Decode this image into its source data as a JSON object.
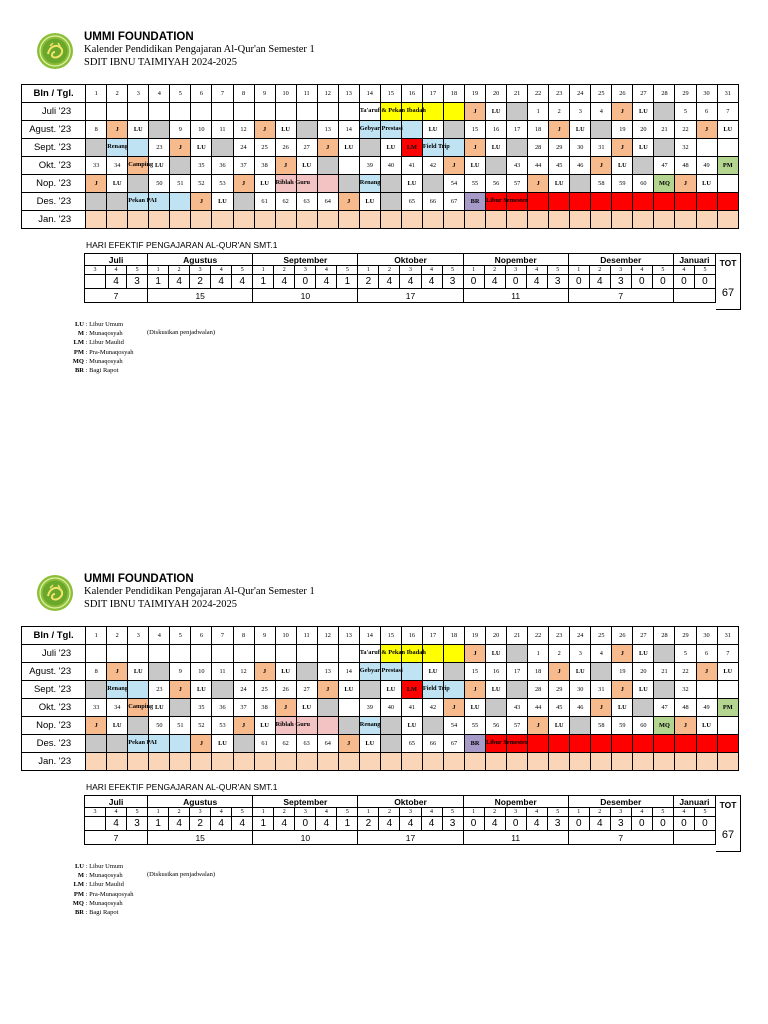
{
  "header": {
    "org": "UMMI FOUNDATION",
    "subtitle": "Kalender Pendidikan Pengajaran Al-Qur'an Semester 1",
    "school": "SDIT IBNU TAIMIYAH 2024-2025"
  },
  "calendar": {
    "header_label": "Bln / Tgl.",
    "days": [
      "1",
      "2",
      "3",
      "4",
      "5",
      "6",
      "7",
      "8",
      "9",
      "10",
      "11",
      "12",
      "13",
      "14",
      "15",
      "16",
      "17",
      "18",
      "19",
      "20",
      "21",
      "22",
      "23",
      "24",
      "25",
      "26",
      "27",
      "28",
      "29",
      "30",
      "31"
    ],
    "rows": [
      {
        "label": "Juli '23",
        "cells": [
          [
            "",
            ""
          ],
          [
            "",
            ""
          ],
          [
            "",
            ""
          ],
          [
            "",
            ""
          ],
          [
            "",
            ""
          ],
          [
            "",
            ""
          ],
          [
            "",
            ""
          ],
          [
            "",
            ""
          ],
          [
            "",
            ""
          ],
          [
            "",
            ""
          ],
          [
            "",
            ""
          ],
          [
            "",
            ""
          ],
          [
            "",
            ""
          ],
          [
            "",
            "",
            "Ta'aruf & Pekan Ibadah",
            "y"
          ],
          [
            "",
            "y"
          ],
          [
            "",
            "y"
          ],
          [
            "",
            "y"
          ],
          [
            "",
            "y"
          ],
          [
            "J",
            "o"
          ],
          [
            "LU",
            ""
          ],
          [
            "",
            "g"
          ],
          [
            "1",
            ""
          ],
          [
            "2",
            ""
          ],
          [
            "3",
            ""
          ],
          [
            "4",
            ""
          ],
          [
            "J",
            "o"
          ],
          [
            "LU",
            ""
          ],
          [
            "",
            "g"
          ],
          [
            "5",
            ""
          ],
          [
            "6",
            ""
          ],
          [
            "7",
            ""
          ]
        ]
      },
      {
        "label": "Agust. '23",
        "cells": [
          [
            "8",
            ""
          ],
          [
            "J",
            "o"
          ],
          [
            "LU",
            ""
          ],
          [
            "",
            "g"
          ],
          [
            "9",
            ""
          ],
          [
            "10",
            ""
          ],
          [
            "11",
            ""
          ],
          [
            "12",
            ""
          ],
          [
            "J",
            "o"
          ],
          [
            "LU",
            ""
          ],
          [
            "",
            "g"
          ],
          [
            "13",
            ""
          ],
          [
            "14",
            ""
          ],
          [
            "",
            "lb",
            "Gebyar Prestasi"
          ],
          [
            "",
            "lb"
          ],
          [
            "",
            "lb"
          ],
          [
            "LU",
            ""
          ],
          [
            "",
            "g"
          ],
          [
            "15",
            ""
          ],
          [
            "16",
            ""
          ],
          [
            "17",
            ""
          ],
          [
            "18",
            ""
          ],
          [
            "J",
            "o"
          ],
          [
            "LU",
            ""
          ],
          [
            "",
            "g"
          ],
          [
            "19",
            ""
          ],
          [
            "20",
            ""
          ],
          [
            "21",
            ""
          ],
          [
            "22",
            ""
          ],
          [
            "J",
            "o"
          ],
          [
            "LU",
            ""
          ]
        ]
      },
      {
        "label": "Sept. '23",
        "cells": [
          [
            "",
            "g"
          ],
          [
            "",
            "lb",
            "Renang"
          ],
          [
            "",
            "lb"
          ],
          [
            "23",
            ""
          ],
          [
            "J",
            "o"
          ],
          [
            "LU",
            ""
          ],
          [
            "",
            "g"
          ],
          [
            "24",
            ""
          ],
          [
            "25",
            ""
          ],
          [
            "26",
            ""
          ],
          [
            "27",
            ""
          ],
          [
            "J",
            "o"
          ],
          [
            "LU",
            ""
          ],
          [
            "",
            "g"
          ],
          [
            "LU",
            ""
          ],
          [
            "LM",
            "r"
          ],
          [
            "",
            "lb",
            "Field Trip"
          ],
          [
            "",
            "lb"
          ],
          [
            "J",
            "o"
          ],
          [
            "LU",
            ""
          ],
          [
            "",
            "g"
          ],
          [
            "28",
            ""
          ],
          [
            "29",
            ""
          ],
          [
            "30",
            ""
          ],
          [
            "31",
            ""
          ],
          [
            "J",
            "o"
          ],
          [
            "LU",
            ""
          ],
          [
            "",
            "g"
          ],
          [
            "32",
            ""
          ],
          [
            "",
            ""
          ],
          [
            "",
            ""
          ]
        ]
      },
      {
        "label": "Okt. '23",
        "cells": [
          [
            "33",
            ""
          ],
          [
            "34",
            ""
          ],
          [
            "",
            "o",
            "Camping"
          ],
          [
            "LU",
            ""
          ],
          [
            "",
            "g"
          ],
          [
            "35",
            ""
          ],
          [
            "36",
            ""
          ],
          [
            "37",
            ""
          ],
          [
            "38",
            ""
          ],
          [
            "J",
            "o"
          ],
          [
            "LU",
            ""
          ],
          [
            "",
            "g"
          ],
          [
            "",
            ""
          ],
          [
            "39",
            ""
          ],
          [
            "40",
            ""
          ],
          [
            "41",
            ""
          ],
          [
            "42",
            ""
          ],
          [
            "J",
            "o"
          ],
          [
            "LU",
            ""
          ],
          [
            "",
            "g"
          ],
          [
            "43",
            ""
          ],
          [
            "44",
            ""
          ],
          [
            "45",
            ""
          ],
          [
            "46",
            ""
          ],
          [
            "J",
            "o"
          ],
          [
            "LU",
            ""
          ],
          [
            "",
            "g"
          ],
          [
            "47",
            ""
          ],
          [
            "48",
            ""
          ],
          [
            "49",
            ""
          ],
          [
            "PM",
            "gr"
          ]
        ]
      },
      {
        "label": "Nop. '23",
        "cells": [
          [
            "J",
            "o"
          ],
          [
            "LU",
            ""
          ],
          [
            "",
            "g"
          ],
          [
            "50",
            ""
          ],
          [
            "51",
            ""
          ],
          [
            "52",
            ""
          ],
          [
            "53",
            ""
          ],
          [
            "J",
            "o"
          ],
          [
            "LU",
            ""
          ],
          [
            "",
            "pk",
            "Riblah Guru"
          ],
          [
            "",
            "pk"
          ],
          [
            "",
            "pk"
          ],
          [
            "",
            "g"
          ],
          [
            "",
            "lb",
            "Renang"
          ],
          [
            "",
            "g"
          ],
          [
            "LU",
            ""
          ],
          [
            "",
            "g"
          ],
          [
            "54",
            ""
          ],
          [
            "55",
            ""
          ],
          [
            "56",
            ""
          ],
          [
            "57",
            ""
          ],
          [
            "J",
            "o"
          ],
          [
            "LU",
            ""
          ],
          [
            "",
            "g"
          ],
          [
            "58",
            ""
          ],
          [
            "59",
            ""
          ],
          [
            "60",
            ""
          ],
          [
            "MQ",
            "gr"
          ],
          [
            "J",
            "o"
          ],
          [
            "LU",
            ""
          ],
          [
            "",
            ""
          ]
        ]
      },
      {
        "label": "Des. '23",
        "cells": [
          [
            "",
            "g"
          ],
          [
            "",
            "g"
          ],
          [
            "",
            "lb",
            "Pekan PAI"
          ],
          [
            "",
            "lb"
          ],
          [
            "",
            "lb"
          ],
          [
            "J",
            "o"
          ],
          [
            "LU",
            ""
          ],
          [
            "",
            "g"
          ],
          [
            "61",
            ""
          ],
          [
            "62",
            ""
          ],
          [
            "63",
            ""
          ],
          [
            "64",
            ""
          ],
          [
            "J",
            "o"
          ],
          [
            "LU",
            ""
          ],
          [
            "",
            "g"
          ],
          [
            "65",
            ""
          ],
          [
            "66",
            ""
          ],
          [
            "67",
            ""
          ],
          [
            "BR",
            "pu"
          ],
          [
            "",
            "r",
            "Libur Semester"
          ],
          [
            "",
            "r"
          ],
          [
            "",
            "r"
          ],
          [
            "",
            "r"
          ],
          [
            "",
            "r"
          ],
          [
            "",
            "r"
          ],
          [
            "",
            "r"
          ],
          [
            "",
            "r"
          ],
          [
            "",
            "r"
          ],
          [
            "",
            "r"
          ],
          [
            "",
            "r"
          ],
          [
            "",
            "r"
          ]
        ]
      },
      {
        "label": "Jan. '23",
        "cells": [
          [
            "",
            "pe"
          ],
          [
            "",
            "pe"
          ],
          [
            "",
            "pe"
          ],
          [
            "",
            "pe"
          ],
          [
            "",
            "pe"
          ],
          [
            "",
            "pe"
          ],
          [
            "",
            "pe"
          ],
          [
            "",
            "pe"
          ],
          [
            "",
            "pe"
          ],
          [
            "",
            "pe"
          ],
          [
            "",
            "pe"
          ],
          [
            "",
            "pe"
          ],
          [
            "",
            "pe"
          ],
          [
            "",
            "pe"
          ],
          [
            "",
            "pe"
          ],
          [
            "",
            "pe"
          ],
          [
            "",
            "pe"
          ],
          [
            "",
            "pe"
          ],
          [
            "",
            "pe"
          ],
          [
            "",
            "pe"
          ],
          [
            "",
            "pe"
          ],
          [
            "",
            "pe"
          ],
          [
            "",
            "pe"
          ],
          [
            "",
            "pe"
          ],
          [
            "",
            "pe"
          ],
          [
            "",
            "pe"
          ],
          [
            "",
            "pe"
          ],
          [
            "",
            "pe"
          ],
          [
            "",
            "pe"
          ],
          [
            "",
            "pe"
          ],
          [
            "",
            "pe"
          ]
        ]
      }
    ]
  },
  "effective": {
    "title": "HARI EFEKTIF PENGAJARAN AL-QUR'AN SMT.1",
    "tot_label": "TOT",
    "total": "67",
    "months": [
      {
        "name": "Juli",
        "weeks": [
          "3",
          "4",
          "5"
        ],
        "values": [
          "",
          "4",
          "3"
        ],
        "total": "7"
      },
      {
        "name": "Agustus",
        "weeks": [
          "1",
          "2",
          "3",
          "4",
          "5"
        ],
        "values": [
          "1",
          "4",
          "2",
          "4",
          "4"
        ],
        "total": "15"
      },
      {
        "name": "September",
        "weeks": [
          "1",
          "2",
          "3",
          "4",
          "5"
        ],
        "values": [
          "1",
          "4",
          "0",
          "4",
          "1"
        ],
        "total": "10"
      },
      {
        "name": "Oktober",
        "weeks": [
          "1",
          "2",
          "3",
          "4",
          "5"
        ],
        "values": [
          "2",
          "4",
          "4",
          "4",
          "3"
        ],
        "total": "17"
      },
      {
        "name": "Nopember",
        "weeks": [
          "1",
          "2",
          "3",
          "4",
          "5"
        ],
        "values": [
          "0",
          "4",
          "0",
          "4",
          "3"
        ],
        "total": "11"
      },
      {
        "name": "Desember",
        "weeks": [
          "1",
          "2",
          "3",
          "4",
          "5"
        ],
        "values": [
          "0",
          "4",
          "3",
          "0",
          "0"
        ],
        "total": "7"
      },
      {
        "name": "Januari",
        "weeks": [
          "4",
          "5"
        ],
        "values": [
          "0",
          "0"
        ],
        "total": ""
      }
    ]
  },
  "legend": [
    {
      "code": "LU",
      "desc": "Libur Umum"
    },
    {
      "code": "M",
      "desc": "Munaqosyah"
    },
    {
      "code": "LM",
      "desc": "Libur Maulid"
    },
    {
      "code": "PM",
      "desc": "Pra-Munaqosyah"
    },
    {
      "code": "MQ",
      "desc": "Munaqosyah"
    },
    {
      "code": "BR",
      "desc": "Bagi Rapot"
    }
  ],
  "legend_note": "(Diskusikan penjadwalan)",
  "colors": {
    "y": "#ffff00",
    "lb": "#bfe3f2",
    "r": "#ff0000",
    "g": "#c8c8c8",
    "o": "#f7ba8d",
    "pk": "#f3c2c2",
    "pu": "#a79ac8",
    "gr": "#b3d590",
    "pe": "#fbd5b7"
  },
  "icons": {
    "logo": "ummi-logo-icon"
  }
}
